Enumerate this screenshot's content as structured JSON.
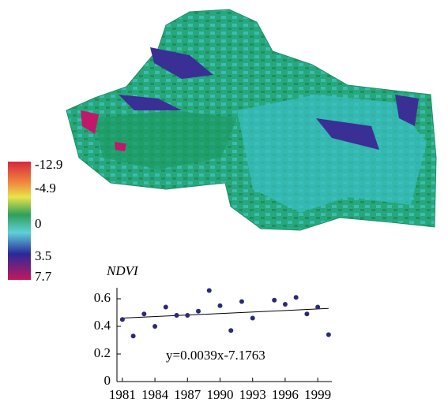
{
  "legend": {
    "labels": [
      "-12.9",
      "-4.9",
      "0",
      "3.5",
      "7.7"
    ]
  },
  "chart_data": {
    "type": "scatter",
    "y_label": "NDVI",
    "annotation": "y=0.0039x-7.1763",
    "x": [
      1981,
      1982,
      1983,
      1984,
      1985,
      1986,
      1987,
      1988,
      1989,
      1990,
      1991,
      1992,
      1993,
      1995,
      1996,
      1997,
      1998,
      1999,
      2000
    ],
    "series": [
      {
        "color": "#2b2a78",
        "values": [
          0.45,
          0.33,
          0.49,
          0.4,
          0.54,
          0.48,
          0.48,
          0.51,
          0.66,
          0.55,
          0.37,
          0.58,
          0.46,
          0.59,
          0.56,
          0.61,
          0.49,
          0.54,
          0.34
        ]
      }
    ],
    "trendline": {
      "x": [
        1981,
        2000
      ],
      "values": [
        0.46,
        0.53
      ]
    },
    "xlim": [
      1980.5,
      2000.3
    ],
    "ylim": [
      0,
      0.68
    ],
    "xticks": [
      1981,
      1984,
      1987,
      1990,
      1993,
      1996,
      1999
    ],
    "yticks": [
      0,
      0.2,
      0.4,
      0.6
    ]
  }
}
